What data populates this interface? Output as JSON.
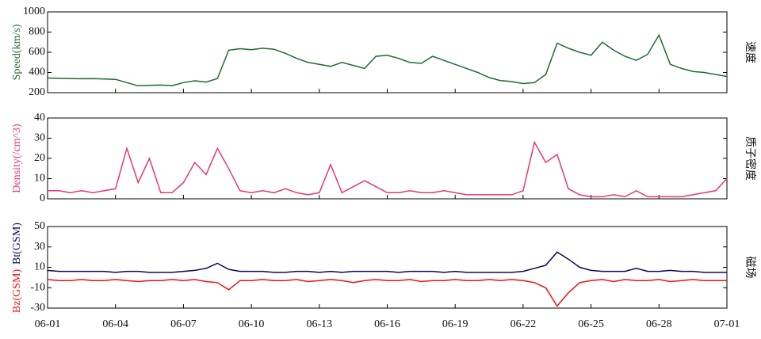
{
  "chart_data": [
    {
      "type": "line",
      "ylabel": "Speed(km/s)",
      "side_label": "速度",
      "x": [
        0,
        0.5,
        1,
        1.5,
        2,
        2.5,
        3,
        3.5,
        4,
        4.5,
        5,
        5.5,
        6,
        6.5,
        7,
        7.5,
        8,
        8.5,
        9,
        9.5,
        10,
        10.5,
        11,
        11.5,
        12,
        12.5,
        13,
        13.5,
        14,
        14.5,
        15,
        15.5,
        16,
        16.5,
        17,
        17.5,
        18,
        18.5,
        19,
        19.5,
        20,
        20.5,
        21,
        21.5,
        22,
        22.5,
        23,
        23.5,
        24,
        24.5,
        25,
        25.5,
        26,
        26.5,
        27,
        27.5,
        28,
        28.5,
        29,
        29.5,
        30
      ],
      "xlim": [
        0,
        30
      ],
      "series": [
        {
          "name": "Speed(km/s)",
          "color": "#1e6b2e",
          "values": [
            345,
            342,
            340,
            338,
            340,
            336,
            332,
            300,
            268,
            272,
            275,
            270,
            300,
            318,
            305,
            340,
            620,
            635,
            625,
            640,
            630,
            590,
            540,
            500,
            480,
            460,
            500,
            470,
            440,
            560,
            570,
            540,
            500,
            490,
            560,
            520,
            480,
            440,
            400,
            350,
            320,
            310,
            290,
            300,
            380,
            690,
            640,
            600,
            570,
            700,
            620,
            560,
            520,
            580,
            770,
            480,
            440,
            410,
            400,
            380,
            360
          ]
        }
      ],
      "ylim": [
        200,
        1000
      ],
      "yticks": [
        200,
        400,
        600,
        800,
        1000
      ]
    },
    {
      "type": "line",
      "ylabel": "Density(/cm^3)",
      "side_label": "质子密度",
      "x": [
        0,
        0.5,
        1,
        1.5,
        2,
        2.5,
        3,
        3.5,
        4,
        4.5,
        5,
        5.5,
        6,
        6.5,
        7,
        7.5,
        8,
        8.5,
        9,
        9.5,
        10,
        10.5,
        11,
        11.5,
        12,
        12.5,
        13,
        13.5,
        14,
        14.5,
        15,
        15.5,
        16,
        16.5,
        17,
        17.5,
        18,
        18.5,
        19,
        19.5,
        20,
        20.5,
        21,
        21.5,
        22,
        22.5,
        23,
        23.5,
        24,
        24.5,
        25,
        25.5,
        26,
        26.5,
        27,
        27.5,
        28,
        28.5,
        29,
        29.5,
        30
      ],
      "xlim": [
        0,
        30
      ],
      "series": [
        {
          "name": "Density(/cm^3)",
          "color": "#e8357a",
          "values": [
            4,
            4,
            3,
            4,
            3,
            4,
            5,
            25,
            8,
            20,
            3,
            3,
            8,
            18,
            12,
            25,
            15,
            4,
            3,
            4,
            3,
            5,
            3,
            2,
            3,
            17,
            3,
            6,
            9,
            6,
            3,
            3,
            4,
            3,
            3,
            4,
            3,
            2,
            2,
            2,
            2,
            2,
            4,
            28,
            18,
            22,
            5,
            2,
            1,
            1,
            2,
            1,
            4,
            1,
            1,
            1,
            1,
            2,
            3,
            4,
            10
          ]
        }
      ],
      "ylim": [
        0,
        40
      ],
      "yticks": [
        0,
        10,
        20,
        30,
        40
      ]
    },
    {
      "type": "line",
      "side_label": "磁场",
      "x": [
        0,
        0.5,
        1,
        1.5,
        2,
        2.5,
        3,
        3.5,
        4,
        4.5,
        5,
        5.5,
        6,
        6.5,
        7,
        7.5,
        8,
        8.5,
        9,
        9.5,
        10,
        10.5,
        11,
        11.5,
        12,
        12.5,
        13,
        13.5,
        14,
        14.5,
        15,
        15.5,
        16,
        16.5,
        17,
        17.5,
        18,
        18.5,
        19,
        19.5,
        20,
        20.5,
        21,
        21.5,
        22,
        22.5,
        23,
        23.5,
        24,
        24.5,
        25,
        25.5,
        26,
        26.5,
        27,
        27.5,
        28,
        28.5,
        29,
        29.5,
        30
      ],
      "xlim": [
        0,
        30
      ],
      "xticks": [
        {
          "value": 0,
          "label": "06-01"
        },
        {
          "value": 3,
          "label": "06-04"
        },
        {
          "value": 6,
          "label": "06-07"
        },
        {
          "value": 9,
          "label": "06-10"
        },
        {
          "value": 12,
          "label": "06-13"
        },
        {
          "value": 15,
          "label": "06-16"
        },
        {
          "value": 18,
          "label": "06-19"
        },
        {
          "value": 21,
          "label": "06-22"
        },
        {
          "value": 24,
          "label": "06-25"
        },
        {
          "value": 27,
          "label": "06-28"
        },
        {
          "value": 30,
          "label": "07-01"
        }
      ],
      "series": [
        {
          "name": "Bt(GSM)",
          "color": "#0a0a55",
          "values": [
            7,
            6,
            6,
            6,
            6,
            6,
            5,
            6,
            6,
            5,
            5,
            5,
            6,
            7,
            9,
            14,
            8,
            6,
            6,
            6,
            5,
            5,
            6,
            6,
            5,
            6,
            5,
            6,
            6,
            6,
            6,
            5,
            6,
            6,
            6,
            5,
            6,
            5,
            5,
            5,
            5,
            5,
            6,
            9,
            12,
            25,
            18,
            10,
            7,
            6,
            6,
            6,
            9,
            6,
            6,
            7,
            6,
            6,
            5,
            5,
            5
          ]
        },
        {
          "name": "Bz(GSM)",
          "color": "#ee1111",
          "values": [
            -2,
            -3,
            -3,
            -2,
            -3,
            -3,
            -2,
            -3,
            -4,
            -3,
            -3,
            -2,
            -3,
            -2,
            -4,
            -5,
            -12,
            -3,
            -3,
            -2,
            -3,
            -3,
            -2,
            -4,
            -3,
            -2,
            -3,
            -5,
            -3,
            -2,
            -3,
            -3,
            -2,
            -4,
            -3,
            -3,
            -2,
            -3,
            -3,
            -2,
            -3,
            -2,
            -3,
            -5,
            -10,
            -28,
            -15,
            -5,
            -3,
            -2,
            -4,
            -2,
            -3,
            -3,
            -2,
            -4,
            -3,
            -2,
            -3,
            -3,
            -3
          ]
        }
      ],
      "ylim": [
        -30,
        50
      ],
      "yticks": [
        -30,
        -10,
        10,
        30,
        50
      ]
    }
  ]
}
